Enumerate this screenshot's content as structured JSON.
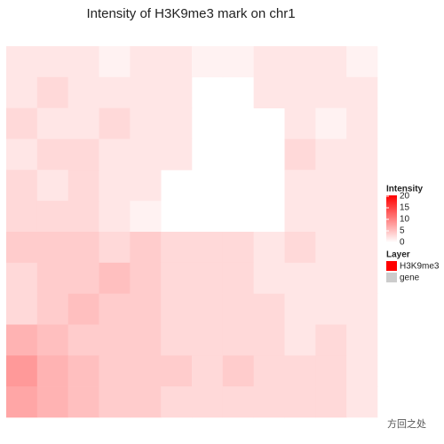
{
  "chart_data": {
    "type": "heatmap",
    "title": "Intensity of H3K9me3 mark on chr1",
    "color_legend": {
      "title": "Intensity",
      "clim": [
        0,
        20
      ],
      "ticks": [
        0,
        5,
        10,
        15,
        20
      ],
      "low": "#ffffff",
      "high": "#ff0000"
    },
    "layer_legend": {
      "title": "Layer",
      "entries": [
        {
          "name": "H3K9me3",
          "color": "#ff0000"
        },
        {
          "name": "gene",
          "color": "#cccccc"
        }
      ]
    },
    "watermark": "方回之处",
    "values": [
      [
        2,
        2,
        2,
        1,
        2,
        2,
        1,
        1,
        2,
        2,
        2,
        1
      ],
      [
        2,
        3,
        2,
        2,
        2,
        2,
        null,
        null,
        2,
        2,
        2,
        2
      ],
      [
        3,
        2,
        2,
        3,
        2,
        2,
        null,
        null,
        null,
        2,
        1,
        2
      ],
      [
        2,
        3,
        3,
        2,
        2,
        2,
        null,
        null,
        null,
        3,
        2,
        2
      ],
      [
        3,
        2,
        3,
        2,
        2,
        null,
        null,
        null,
        null,
        2,
        2,
        2
      ],
      [
        3,
        3,
        3,
        2,
        1,
        null,
        null,
        null,
        null,
        2,
        2,
        2
      ],
      [
        4,
        4,
        4,
        3,
        4,
        3,
        3,
        3,
        2,
        3,
        2,
        2
      ],
      [
        3,
        4,
        4,
        5,
        4,
        3,
        3,
        3,
        2,
        2,
        2,
        2
      ],
      [
        3,
        4,
        5,
        4,
        4,
        3,
        3,
        3,
        3,
        2,
        2,
        2
      ],
      [
        6,
        5,
        4,
        4,
        4,
        3,
        3,
        3,
        3,
        2,
        3,
        2
      ],
      [
        8,
        6,
        5,
        4,
        4,
        4,
        3,
        4,
        3,
        3,
        3,
        2
      ],
      [
        7,
        6,
        5,
        4,
        4,
        3,
        3,
        3,
        3,
        3,
        3,
        2
      ]
    ]
  }
}
